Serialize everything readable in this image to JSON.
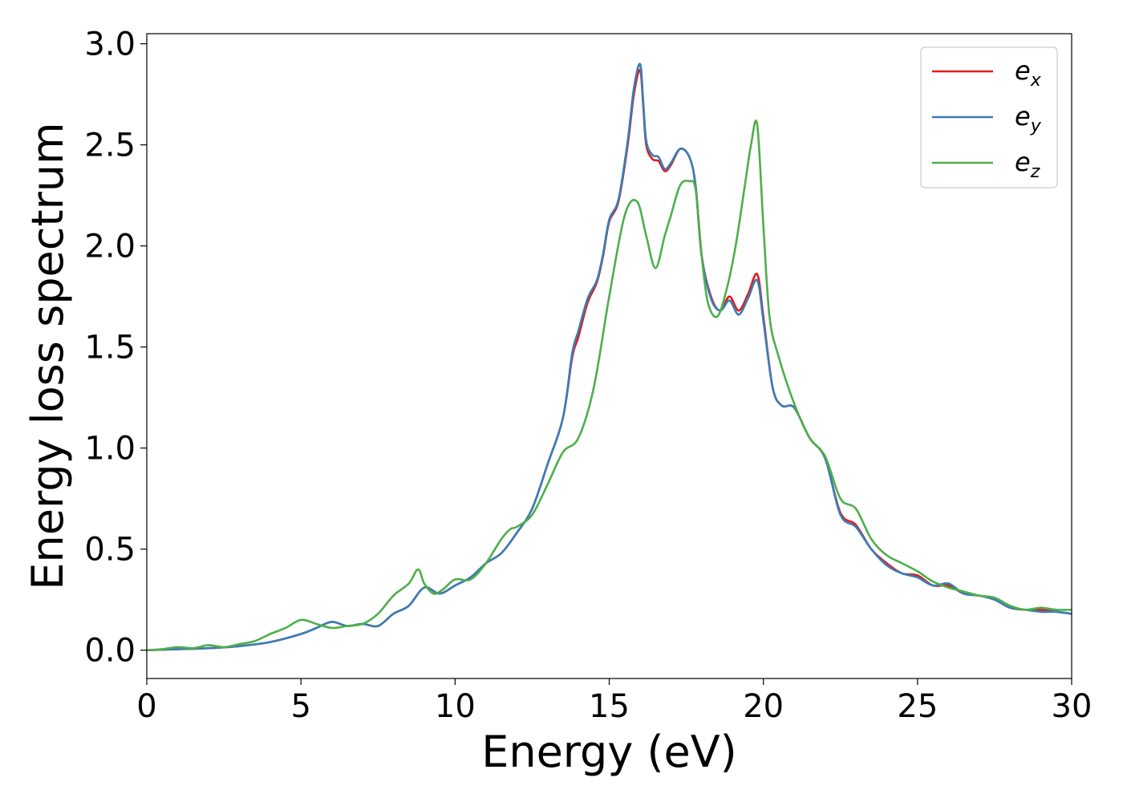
{
  "chart_data": {
    "type": "line",
    "title": "",
    "xlabel": "Energy (eV)",
    "ylabel": "Energy loss spectrum",
    "xlim": [
      0,
      30
    ],
    "ylim": [
      -0.14,
      3.05
    ],
    "xticks": [
      0,
      5,
      10,
      15,
      20,
      25,
      30
    ],
    "xtick_labels": [
      "0",
      "5",
      "10",
      "15",
      "20",
      "25",
      "30"
    ],
    "yticks": [
      0.0,
      0.5,
      1.0,
      1.5,
      2.0,
      2.5,
      3.0
    ],
    "ytick_labels": [
      "0.0",
      "0.5",
      "1.0",
      "1.5",
      "2.0",
      "2.5",
      "3.0"
    ],
    "grid": false,
    "legend_position": "top-right",
    "series": [
      {
        "name": "e_x",
        "legend_base": "e",
        "legend_sub": "x",
        "color": "#e41a1c",
        "x": [
          0,
          1,
          2,
          3,
          4,
          5,
          5.5,
          6,
          6.5,
          7,
          7.5,
          8,
          8.5,
          9,
          9.5,
          10,
          10.5,
          11,
          11.5,
          12,
          12.5,
          13,
          13.5,
          13.8,
          14,
          14.3,
          14.6,
          14.8,
          15,
          15.3,
          15.6,
          15.8,
          16,
          16.1,
          16.2,
          16.4,
          16.6,
          16.8,
          17,
          17.3,
          17.6,
          17.8,
          18,
          18.3,
          18.6,
          18.9,
          19.2,
          19.5,
          19.8,
          20,
          20.3,
          20.6,
          21,
          21.5,
          22,
          22.5,
          23,
          23.5,
          24,
          24.5,
          25,
          25.5,
          26,
          26.5,
          27,
          27.5,
          28,
          28.5,
          29,
          29.5,
          30
        ],
        "y": [
          0.0,
          0.005,
          0.01,
          0.02,
          0.04,
          0.08,
          0.11,
          0.14,
          0.12,
          0.13,
          0.12,
          0.18,
          0.22,
          0.31,
          0.28,
          0.32,
          0.36,
          0.43,
          0.48,
          0.58,
          0.7,
          0.92,
          1.15,
          1.45,
          1.55,
          1.72,
          1.82,
          1.95,
          2.12,
          2.22,
          2.5,
          2.75,
          2.87,
          2.7,
          2.5,
          2.43,
          2.42,
          2.37,
          2.4,
          2.48,
          2.44,
          2.3,
          1.95,
          1.75,
          1.68,
          1.75,
          1.68,
          1.76,
          1.86,
          1.65,
          1.3,
          1.21,
          1.2,
          1.05,
          0.95,
          0.68,
          0.62,
          0.5,
          0.43,
          0.38,
          0.37,
          0.32,
          0.32,
          0.28,
          0.27,
          0.25,
          0.21,
          0.2,
          0.2,
          0.19,
          0.18
        ]
      },
      {
        "name": "e_y",
        "legend_base": "e",
        "legend_sub": "y",
        "color": "#377eb8",
        "x": [
          0,
          1,
          2,
          3,
          4,
          5,
          5.5,
          6,
          6.5,
          7,
          7.5,
          8,
          8.5,
          9,
          9.5,
          10,
          10.5,
          11,
          11.5,
          12,
          12.5,
          13,
          13.5,
          13.8,
          14,
          14.3,
          14.6,
          14.8,
          15,
          15.3,
          15.6,
          15.8,
          16,
          16.1,
          16.2,
          16.4,
          16.6,
          16.8,
          17,
          17.3,
          17.6,
          17.8,
          18,
          18.3,
          18.6,
          18.9,
          19.2,
          19.5,
          19.8,
          20,
          20.3,
          20.6,
          21,
          21.5,
          22,
          22.5,
          23,
          23.5,
          24,
          24.5,
          25,
          25.5,
          26,
          26.5,
          27,
          27.5,
          28,
          28.5,
          29,
          29.5,
          30
        ],
        "y": [
          0.0,
          0.005,
          0.01,
          0.02,
          0.04,
          0.08,
          0.11,
          0.14,
          0.12,
          0.13,
          0.12,
          0.18,
          0.22,
          0.31,
          0.28,
          0.32,
          0.36,
          0.43,
          0.48,
          0.58,
          0.7,
          0.92,
          1.15,
          1.47,
          1.58,
          1.74,
          1.83,
          1.96,
          2.13,
          2.23,
          2.52,
          2.78,
          2.9,
          2.72,
          2.52,
          2.45,
          2.44,
          2.38,
          2.41,
          2.48,
          2.44,
          2.3,
          1.95,
          1.74,
          1.68,
          1.73,
          1.66,
          1.74,
          1.83,
          1.63,
          1.3,
          1.21,
          1.2,
          1.05,
          0.95,
          0.67,
          0.61,
          0.5,
          0.42,
          0.38,
          0.36,
          0.32,
          0.33,
          0.28,
          0.27,
          0.25,
          0.21,
          0.2,
          0.19,
          0.19,
          0.18
        ]
      },
      {
        "name": "e_z",
        "legend_base": "e",
        "legend_sub": "z",
        "color": "#4daf4a",
        "x": [
          0,
          0.5,
          1,
          1.5,
          2,
          2.5,
          3,
          3.5,
          4,
          4.5,
          5,
          5.5,
          6,
          6.5,
          7,
          7.5,
          8,
          8.5,
          8.8,
          9,
          9.3,
          9.6,
          10,
          10.5,
          11,
          11.5,
          11.8,
          12,
          12.5,
          13,
          13.5,
          14,
          14.5,
          15,
          15.5,
          15.9,
          16.2,
          16.5,
          16.8,
          17,
          17.3,
          17.6,
          17.8,
          18,
          18.2,
          18.5,
          18.8,
          19.1,
          19.4,
          19.6,
          19.8,
          20,
          20.2,
          20.5,
          21,
          21.5,
          22,
          22.5,
          23,
          23.5,
          24,
          24.5,
          25,
          25.5,
          26,
          26.5,
          27,
          27.5,
          28,
          28.5,
          29,
          29.5,
          30
        ],
        "y": [
          0.0,
          0.005,
          0.015,
          0.01,
          0.025,
          0.015,
          0.03,
          0.045,
          0.08,
          0.11,
          0.15,
          0.13,
          0.11,
          0.12,
          0.13,
          0.18,
          0.27,
          0.33,
          0.4,
          0.33,
          0.28,
          0.3,
          0.35,
          0.35,
          0.43,
          0.55,
          0.6,
          0.61,
          0.67,
          0.82,
          0.98,
          1.05,
          1.3,
          1.75,
          2.15,
          2.22,
          2.05,
          1.89,
          2.05,
          2.15,
          2.3,
          2.32,
          2.28,
          1.95,
          1.72,
          1.65,
          1.78,
          2.0,
          2.3,
          2.5,
          2.6,
          2.1,
          1.65,
          1.45,
          1.22,
          1.05,
          0.96,
          0.75,
          0.7,
          0.55,
          0.47,
          0.43,
          0.39,
          0.34,
          0.31,
          0.29,
          0.27,
          0.26,
          0.22,
          0.2,
          0.21,
          0.2,
          0.2
        ]
      }
    ]
  }
}
